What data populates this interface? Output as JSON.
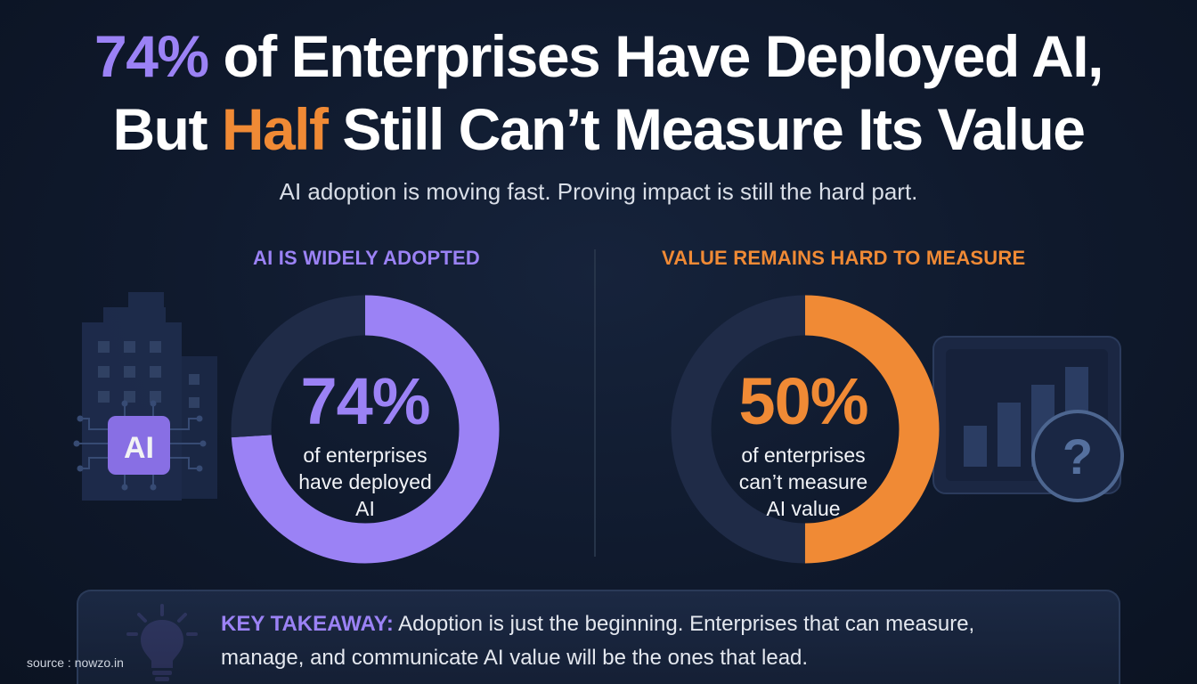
{
  "headline": {
    "line1_highlight": "74%",
    "line1_rest": " of Enterprises Have Deployed AI,",
    "line2_pre": "But ",
    "line2_highlight": "Half",
    "line2_rest": " Still Can’t Measure Its Value"
  },
  "subtitle": "AI adoption is moving fast. Proving impact is still the hard part.",
  "left_panel": {
    "heading": "AI IS WIDELY ADOPTED",
    "icon": "building-ai-chip-icon",
    "chip_label": "AI",
    "value_text": "74%",
    "desc_line1": "of enterprises",
    "desc_line2": "have deployed",
    "desc_line3": "AI"
  },
  "right_panel": {
    "heading": "VALUE REMAINS HARD TO MEASURE",
    "icon": "chart-question-icon",
    "question_mark": "?",
    "value_text": "50%",
    "desc_line1": "of enterprises",
    "desc_line2": "can’t measure",
    "desc_line3": "AI value"
  },
  "takeaway": {
    "icon": "lightbulb-icon",
    "label": "KEY TAKEAWAY:",
    "text": " Adoption is just the beginning. Enterprises that can measure, manage, and communicate AI value will be the ones that lead."
  },
  "source": "source : nowzo.in",
  "colors": {
    "purple": "#9b82f5",
    "orange": "#f08a35",
    "track": "#1f2b47",
    "background": "#0f192c"
  },
  "chart_data": [
    {
      "type": "pie",
      "variant": "donut",
      "categories": [
        "have deployed AI",
        "remaining"
      ],
      "values": [
        74,
        26
      ],
      "unit": "%",
      "colors": [
        "#9b82f5",
        "#1f2b47"
      ]
    },
    {
      "type": "pie",
      "variant": "donut",
      "categories": [
        "can’t measure AI value",
        "remaining"
      ],
      "values": [
        50,
        50
      ],
      "unit": "%",
      "colors": [
        "#f08a35",
        "#1f2b47"
      ]
    }
  ]
}
